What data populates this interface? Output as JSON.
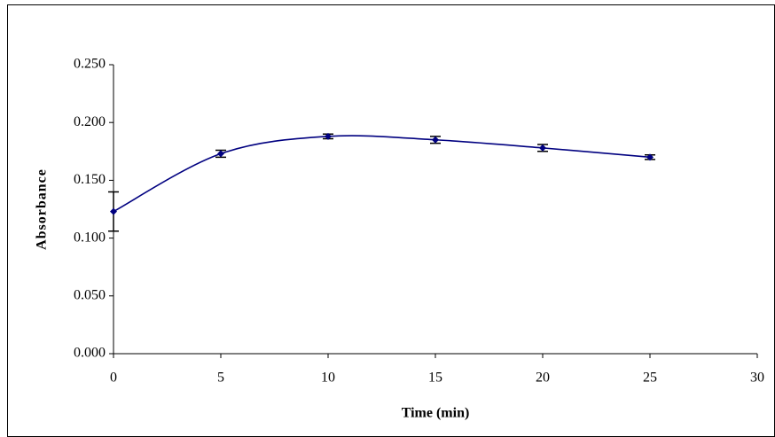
{
  "chart_data": {
    "type": "line",
    "x_label": "Time (min)",
    "y_label": "Absorbance",
    "x": [
      0,
      5,
      10,
      15,
      20,
      25
    ],
    "series": [
      {
        "color": "#000080",
        "values": [
          0.123,
          0.173,
          0.188,
          0.185,
          0.178,
          0.17
        ],
        "errors": [
          0.017,
          0.003,
          0.002,
          0.003,
          0.003,
          0.002
        ]
      }
    ],
    "xlim": [
      0,
      30
    ],
    "xticks": [
      0,
      5,
      10,
      15,
      20,
      25,
      30
    ],
    "ylim": [
      0,
      0.25
    ],
    "yticks": [
      {
        "value": 0,
        "label": "0.000"
      },
      {
        "value": 0.05,
        "label": "0.050"
      },
      {
        "value": 0.1,
        "label": "0.100"
      },
      {
        "value": 0.15,
        "label": "0.150"
      },
      {
        "value": 0.2,
        "label": "0.200"
      },
      {
        "value": 0.25,
        "label": "0.250"
      }
    ],
    "smooth": true
  }
}
